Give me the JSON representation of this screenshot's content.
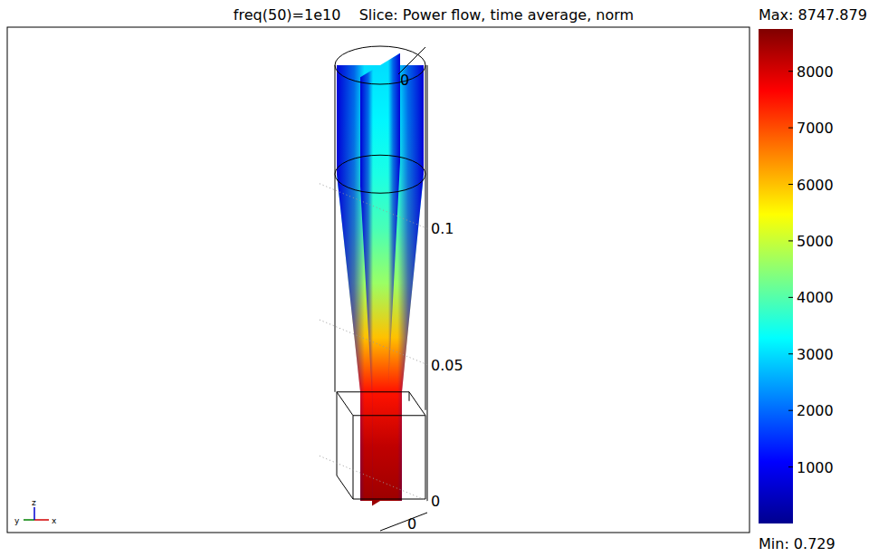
{
  "chart_data": {
    "type": "slice",
    "title": "freq(50)=1e10    Slice: Power flow, time average, norm",
    "zlim": [
      0,
      0.16
    ],
    "zticks": [
      0,
      0.05,
      0.1
    ],
    "xticks": [
      0
    ],
    "yticks": [
      0
    ],
    "triad": {
      "x": "x",
      "y": "y",
      "z": "z"
    },
    "field": {
      "z": [
        0,
        0.02,
        0.04,
        0.06,
        0.08,
        0.1,
        0.12,
        0.14,
        0.16
      ],
      "values": [
        8500,
        8200,
        7500,
        6000,
        4600,
        3900,
        3500,
        3200,
        3000
      ],
      "edge_value": 700
    },
    "colorbar": {
      "range": [
        0.729,
        8747.879
      ],
      "ticks": [
        1000,
        2000,
        3000,
        4000,
        5000,
        6000,
        7000,
        8000
      ],
      "max_label": "Max: 8747.879",
      "min_label": "Min: 0.729"
    }
  }
}
